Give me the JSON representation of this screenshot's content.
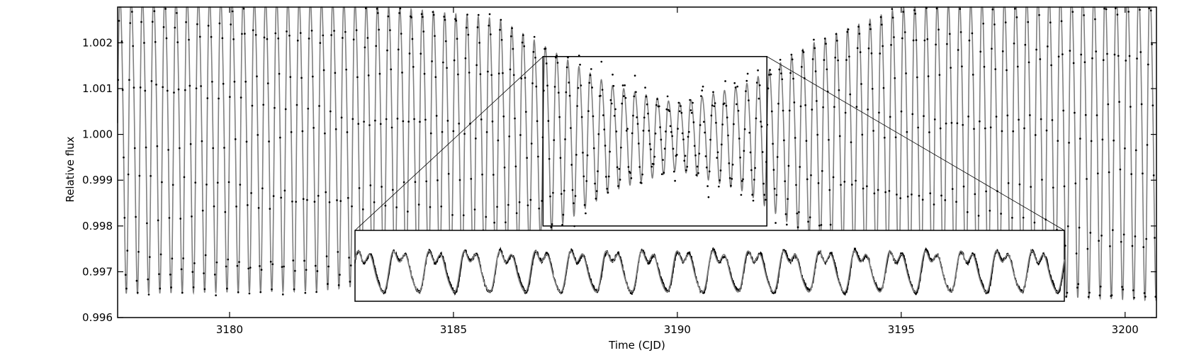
{
  "chart_data": {
    "type": "line",
    "xlabel": "Time (CJD)",
    "ylabel": "Relative flux",
    "xlim": [
      3177.5,
      3200.7
    ],
    "ylim": [
      0.996,
      1.00278
    ],
    "x_ticks": [
      3180,
      3185,
      3190,
      3195,
      3200
    ],
    "x_tick_labels": [
      "3180",
      "3185",
      "3190",
      "3195",
      "3200"
    ],
    "y_ticks": [
      0.996,
      0.997,
      0.998,
      0.999,
      1.0,
      1.001,
      1.002
    ],
    "y_tick_labels": [
      "0.996",
      "0.997",
      "0.998",
      "0.999",
      "1.000",
      "1.001",
      "1.002"
    ],
    "grid": false,
    "legend": "none",
    "signal": {
      "oscillation_period_days": 0.25,
      "baseline": 1.0,
      "amplitude_envelope": {
        "x": [
          3177.5,
          3182,
          3186,
          3188.5,
          3190,
          3191.5,
          3193,
          3195,
          3198,
          3200.7
        ],
        "amplitude": [
          0.00335,
          0.0033,
          0.0028,
          0.0012,
          0.00075,
          0.0012,
          0.0022,
          0.0031,
          0.0034,
          0.0035
        ]
      }
    },
    "series": [
      {
        "kind": "model",
        "line_style": "solid",
        "color": "#808080"
      },
      {
        "kind": "observed",
        "marker": "dot",
        "color": "#000000"
      }
    ],
    "zoom_region": {
      "xlim": [
        3187.0,
        3192.0
      ],
      "ylim": [
        0.998,
        1.0017
      ]
    },
    "inset": {
      "xlim": [
        3187.0,
        3192.0
      ],
      "series": [
        {
          "kind": "observed",
          "color": "#000000"
        },
        {
          "kind": "model",
          "color": "#808080"
        }
      ]
    }
  }
}
